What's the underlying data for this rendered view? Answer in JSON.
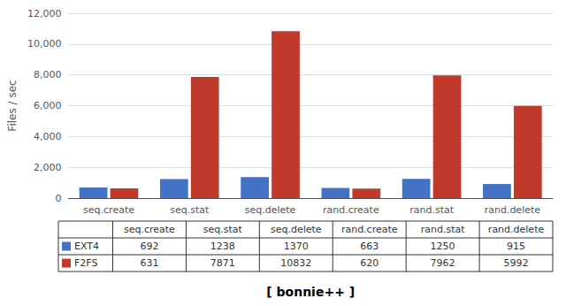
{
  "chart_data": {
    "type": "bar",
    "xlabel": "[ bonnie++ ]",
    "ylabel": "Files / sec",
    "categories": [
      "seq.create",
      "seq.stat",
      "seq.delete",
      "rand.create",
      "rand.stat",
      "rand.delete"
    ],
    "series": [
      {
        "name": "EXT4",
        "color": "#4472C4",
        "values": [
          692,
          1238,
          1370,
          663,
          1250,
          915
        ]
      },
      {
        "name": "F2FS",
        "color": "#C0392B",
        "values": [
          631,
          7871,
          10832,
          620,
          7962,
          5992
        ]
      }
    ],
    "ylim": [
      0,
      12000
    ],
    "yticks": [
      0,
      2000,
      4000,
      6000,
      8000,
      10000,
      12000
    ],
    "grid": true
  }
}
